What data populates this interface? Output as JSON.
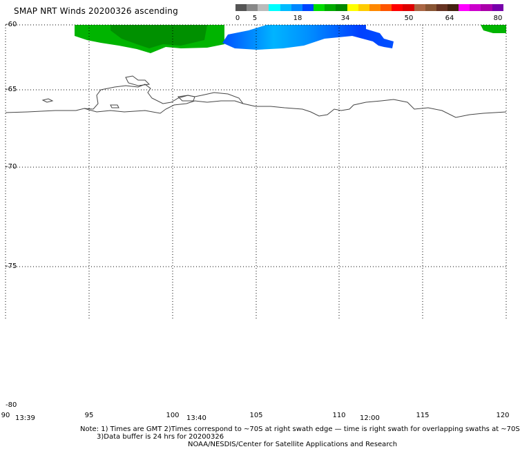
{
  "title": "SMAP NRT Winds 20200326 ascending",
  "legend": {
    "ticks": [
      "0",
      "5",
      "18",
      "34",
      "50",
      "64",
      "80"
    ],
    "colors": [
      "#555555",
      "#888888",
      "#bbbbbb",
      "#00ffff",
      "#00bbff",
      "#0088ff",
      "#0044ff",
      "#00dd00",
      "#00aa00",
      "#008800",
      "#ffff00",
      "#ffcc00",
      "#ff8800",
      "#ff5500",
      "#ff0000",
      "#dd0000",
      "#aa6644",
      "#885533",
      "#663322",
      "#442211",
      "#ff00ff",
      "#cc00cc",
      "#aa00aa",
      "#7700aa"
    ]
  },
  "map": {
    "lat_labels": [
      "-60",
      "-65",
      "-70",
      "-75",
      "-80"
    ],
    "lon_labels": [
      "90",
      "95",
      "100",
      "105",
      "110",
      "115",
      "120"
    ],
    "time_labels": [
      "13:39",
      "13:40",
      "12:00"
    ],
    "wind_colors": {
      "green": "#00b400",
      "dark_green": "#008c00",
      "blue": "#0050ff",
      "light_blue": "#00b4ff"
    }
  },
  "notes": {
    "line1": "Note: 1) Times are GMT 2)Times correspond to ~70S at right swath edge — time is right swath for overlapping swaths at ~70S",
    "line2": "3)Data buffer is 24 hrs for 20200326",
    "line3": "NOAA/NESDIS/Center for Satellite Applications and Research"
  }
}
